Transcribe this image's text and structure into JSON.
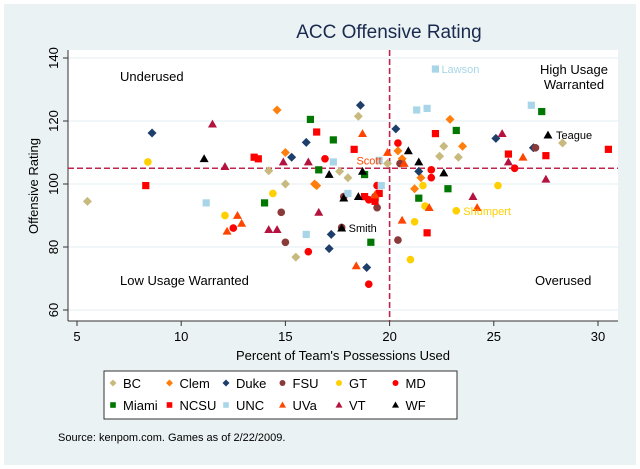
{
  "chart_data": {
    "type": "scatter",
    "title": "ACC Offensive Rating",
    "xlabel": "Percent of Team's Possessions Used",
    "ylabel": "Offensive Rating",
    "xlim": [
      4.5,
      31
    ],
    "ylim": [
      57,
      142
    ],
    "xticks": [
      5,
      10,
      15,
      20,
      25,
      30
    ],
    "yticks": [
      60,
      80,
      100,
      120,
      140
    ],
    "grid": true,
    "reference_lines": {
      "x": 20,
      "y": 105
    },
    "quadrant_labels": {
      "top_left": "Underused",
      "top_right": [
        "High Usage",
        "Warranted"
      ],
      "bottom_left": "Low Usage Warranted",
      "bottom_right": "Overused"
    },
    "legend_position": "bottom",
    "source_note": "Source: kenpom.com. Games as of 2/22/2009.",
    "series": [
      {
        "name": "BC",
        "color": "#c8b97e",
        "marker": "diamond",
        "points": [
          [
            5.5,
            94.5
          ],
          [
            14.2,
            104.2
          ],
          [
            15.5,
            76.8
          ],
          [
            15.0,
            100
          ],
          [
            17.6,
            104
          ],
          [
            18.5,
            121.5
          ],
          [
            22.4,
            108.8
          ],
          [
            23.3,
            108.5
          ],
          [
            22.6,
            112
          ],
          [
            28.3,
            113
          ],
          [
            19.9,
            106.5
          ],
          [
            18.0,
            102
          ]
        ]
      },
      {
        "name": "Clem",
        "color": "#ff7f0e",
        "marker": "diamond",
        "points": [
          [
            14.6,
            123.5
          ],
          [
            15.0,
            110
          ],
          [
            16.4,
            100
          ],
          [
            16.5,
            99.5
          ],
          [
            20.4,
            110.5
          ],
          [
            20.6,
            108
          ],
          [
            22.9,
            120.5
          ],
          [
            23.5,
            112
          ],
          [
            21.5,
            102
          ],
          [
            21.2,
            98.5
          ]
        ]
      },
      {
        "name": "Duke",
        "color": "#1f3f6b",
        "marker": "diamond",
        "points": [
          [
            8.6,
            116.2
          ],
          [
            16.0,
            113.2
          ],
          [
            15.3,
            108.5
          ],
          [
            18.6,
            125
          ],
          [
            17.2,
            84
          ],
          [
            17.1,
            79.5
          ],
          [
            18.9,
            73.5
          ],
          [
            20.3,
            117.5
          ],
          [
            25.1,
            114.5
          ],
          [
            26.9,
            111.5
          ],
          [
            21.4,
            104
          ]
        ]
      },
      {
        "name": "FSU",
        "color": "#8b3a3a",
        "marker": "circle",
        "points": [
          [
            14.8,
            91
          ],
          [
            15.0,
            81.5
          ],
          [
            17.7,
            86.2
          ],
          [
            19.3,
            95
          ],
          [
            19.4,
            92.5
          ],
          [
            20.4,
            82.2
          ],
          [
            27.0,
            111.5
          ],
          [
            20.5,
            106.5
          ],
          [
            17.8,
            96
          ],
          [
            19.3,
            96
          ]
        ]
      },
      {
        "name": "GT",
        "color": "#ffd000",
        "marker": "circle",
        "points": [
          [
            8.4,
            107
          ],
          [
            12.1,
            90
          ],
          [
            14.4,
            97
          ],
          [
            21.7,
            93
          ],
          [
            21.2,
            88
          ],
          [
            23.2,
            91.5
          ],
          [
            25.2,
            99.5
          ],
          [
            21.6,
            99.5
          ],
          [
            21.0,
            76
          ]
        ]
      },
      {
        "name": "MD",
        "color": "#ff0000",
        "marker": "circle",
        "points": [
          [
            12.5,
            86
          ],
          [
            16.1,
            78.5
          ],
          [
            16.9,
            108
          ],
          [
            19.4,
            99.5
          ],
          [
            19.0,
            68.2
          ],
          [
            20.4,
            113
          ],
          [
            22.0,
            102
          ],
          [
            22.0,
            104.5
          ],
          [
            26.0,
            105
          ],
          [
            19.0,
            95
          ]
        ]
      },
      {
        "name": "Miami",
        "color": "#007700",
        "marker": "square",
        "points": [
          [
            16.2,
            120.5
          ],
          [
            16.6,
            104.5
          ],
          [
            17.3,
            114
          ],
          [
            18.8,
            103
          ],
          [
            19.1,
            81.5
          ],
          [
            21.4,
            95.5
          ],
          [
            23.2,
            117
          ],
          [
            22.8,
            98.5
          ],
          [
            27.3,
            123
          ],
          [
            14.0,
            94
          ]
        ]
      },
      {
        "name": "NCSU",
        "color": "#ff0000",
        "marker": "square",
        "points": [
          [
            8.3,
            99.5
          ],
          [
            13.5,
            108.5
          ],
          [
            13.7,
            108
          ],
          [
            16.5,
            116.5
          ],
          [
            18.3,
            111
          ],
          [
            18.8,
            96
          ],
          [
            19.3,
            94.5
          ],
          [
            22.2,
            116
          ],
          [
            25.7,
            109.5
          ],
          [
            27.5,
            109
          ],
          [
            30.5,
            111
          ],
          [
            21.8,
            84.5
          ],
          [
            19.5,
            97
          ]
        ]
      },
      {
        "name": "UNC",
        "color": "#a8d6e8",
        "marker": "square",
        "points": [
          [
            22.2,
            136.5
          ],
          [
            21.8,
            124
          ],
          [
            21.3,
            123.5
          ],
          [
            26.8,
            125
          ],
          [
            17.3,
            107
          ],
          [
            19.5,
            107.5
          ],
          [
            19.6,
            99.5
          ],
          [
            11.2,
            94
          ],
          [
            16.0,
            84
          ],
          [
            18.0,
            97
          ]
        ]
      },
      {
        "name": "UVa",
        "color": "#ff4500",
        "marker": "triangle",
        "points": [
          [
            18.7,
            116
          ],
          [
            19.9,
            110
          ],
          [
            20.7,
            106.5
          ],
          [
            12.7,
            90
          ],
          [
            12.9,
            87.5
          ],
          [
            12.2,
            85
          ],
          [
            18.4,
            74
          ],
          [
            21.9,
            92.5
          ],
          [
            20.6,
            88.5
          ],
          [
            24.2,
            92.5
          ],
          [
            26.4,
            108.5
          ],
          [
            19.3,
            96.5
          ]
        ]
      },
      {
        "name": "VT",
        "color": "#b5133f",
        "marker": "triangle",
        "points": [
          [
            11.5,
            119
          ],
          [
            12.1,
            105.5
          ],
          [
            14.9,
            107
          ],
          [
            16.1,
            107
          ],
          [
            14.2,
            85.5
          ],
          [
            14.6,
            85.5
          ],
          [
            16.6,
            91
          ],
          [
            25.7,
            107
          ],
          [
            25.4,
            116
          ],
          [
            27.5,
            101.5
          ],
          [
            24.0,
            96
          ]
        ]
      },
      {
        "name": "WF",
        "color": "#000000",
        "marker": "triangle",
        "points": [
          [
            11.1,
            108
          ],
          [
            17.1,
            103
          ],
          [
            18.7,
            104
          ],
          [
            17.8,
            95.5
          ],
          [
            18.5,
            96
          ],
          [
            17.7,
            86
          ],
          [
            20.9,
            110.5
          ],
          [
            21.4,
            107
          ],
          [
            22.6,
            103.5
          ],
          [
            27.6,
            115.5
          ]
        ]
      }
    ],
    "annotations": [
      {
        "text": "Lawson",
        "team": "UNC",
        "x": 22.2,
        "y": 136.5
      },
      {
        "text": "Scott",
        "team": "UVa",
        "x": 19.9,
        "y": 110
      },
      {
        "text": "Teague",
        "team": "WF",
        "x": 27.6,
        "y": 115.5
      },
      {
        "text": "Shumpert",
        "team": "GT",
        "x": 23.2,
        "y": 91.5
      },
      {
        "text": "Smith",
        "team": "WF",
        "x": 17.7,
        "y": 86
      }
    ],
    "legend": [
      {
        "name": "BC",
        "color": "#c8b97e",
        "marker": "diamond"
      },
      {
        "name": "Clem",
        "color": "#ff7f0e",
        "marker": "diamond"
      },
      {
        "name": "Duke",
        "color": "#1f3f6b",
        "marker": "diamond"
      },
      {
        "name": "FSU",
        "color": "#8b3a3a",
        "marker": "circle"
      },
      {
        "name": "GT",
        "color": "#ffd000",
        "marker": "circle"
      },
      {
        "name": "MD",
        "color": "#ff0000",
        "marker": "circle"
      },
      {
        "name": "Miami",
        "color": "#007700",
        "marker": "square"
      },
      {
        "name": "NCSU",
        "color": "#ff0000",
        "marker": "square"
      },
      {
        "name": "UNC",
        "color": "#a8d6e8",
        "marker": "square"
      },
      {
        "name": "UVa",
        "color": "#ff4500",
        "marker": "triangle"
      },
      {
        "name": "VT",
        "color": "#b5133f",
        "marker": "triangle"
      },
      {
        "name": "WF",
        "color": "#000000",
        "marker": "triangle"
      }
    ],
    "reference_line_color": "#c0244d"
  }
}
